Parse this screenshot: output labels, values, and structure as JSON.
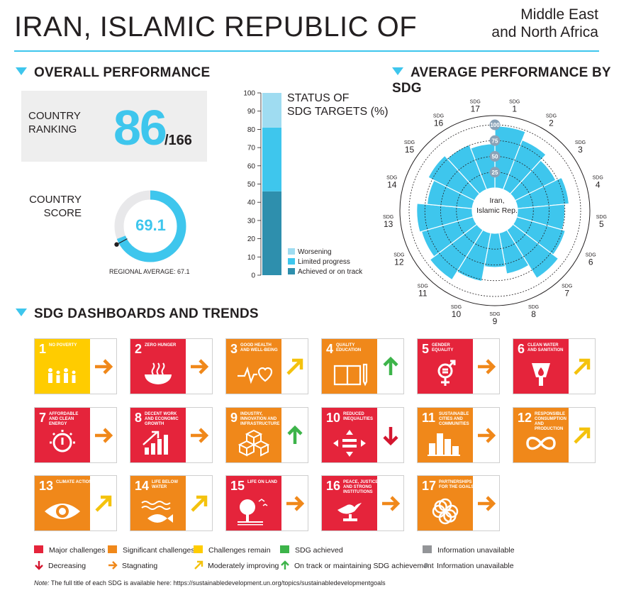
{
  "header": {
    "country": "IRAN, ISLAMIC REPUBLIC OF",
    "region_line1": "Middle East",
    "region_line2": "and North Africa"
  },
  "overall": {
    "section_title": "OVERALL PERFORMANCE",
    "ranking_label_1": "COUNTRY",
    "ranking_label_2": "RANKING",
    "rank": "86",
    "rank_of": "/166",
    "score_label_1": "COUNTRY",
    "score_label_2": "SCORE",
    "score": "69.1",
    "score_value": 69.1,
    "regional_average_label": "REGIONAL AVERAGE: 67.1",
    "regional_average_value": 67.1
  },
  "status": {
    "title_1": "STATUS OF",
    "title_2": "SDG TARGETS (%)",
    "ticks": [
      "100",
      "90",
      "80",
      "70",
      "60",
      "50",
      "40",
      "30",
      "20",
      "10",
      "0"
    ],
    "legend": [
      "Worsening",
      "Limited progress",
      "Achieved or on track"
    ]
  },
  "chart_data": {
    "type": "bar",
    "title": "STATUS OF SDG TARGETS (%)",
    "categories": [
      "SDG targets"
    ],
    "series": [
      {
        "name": "Achieved or on track",
        "values": [
          46
        ]
      },
      {
        "name": "Limited progress",
        "values": [
          35
        ]
      },
      {
        "name": "Worsening",
        "values": [
          19
        ]
      }
    ],
    "stacked": true,
    "ylim": [
      0,
      100
    ],
    "colors": {
      "Achieved or on track": "#2e8fad",
      "Limited progress": "#3ec6ed",
      "Worsening": "#9fdcf1"
    }
  },
  "radial": {
    "section_title": "AVERAGE PERFORMANCE BY SDG",
    "center_label_1": "Iran,",
    "center_label_2": "Islamic Rep.",
    "scale_labels": [
      "100",
      "75",
      "50",
      "25"
    ],
    "sdg_prefix": "SDG",
    "goals": [
      "1",
      "2",
      "3",
      "4",
      "5",
      "6",
      "7",
      "8",
      "9",
      "10",
      "11",
      "12",
      "13",
      "14",
      "15",
      "16",
      "17"
    ],
    "scores": [
      98,
      84,
      72,
      82,
      75,
      80,
      90,
      66,
      54,
      78,
      93,
      85,
      88,
      72,
      82,
      76,
      70
    ]
  },
  "dashboards": {
    "section_title": "SDG DASHBOARDS AND TRENDS",
    "tiles": [
      {
        "num": "1",
        "name": "No poverty",
        "color": "#ffcc00",
        "arrow": "stagnating",
        "icon": "family-icon"
      },
      {
        "num": "2",
        "name": "Zero hunger",
        "color": "#e5243b",
        "arrow": "stagnating",
        "icon": "bowl-icon"
      },
      {
        "num": "3",
        "name": "Good health and well-being",
        "color": "#f0881a",
        "arrow": "moderate",
        "icon": "heartbeat-icon"
      },
      {
        "num": "4",
        "name": "Quality education",
        "color": "#f0881a",
        "arrow": "ontrack",
        "icon": "book-icon"
      },
      {
        "num": "5",
        "name": "Gender equality",
        "color": "#e5243b",
        "arrow": "stagnating",
        "icon": "gender-icon"
      },
      {
        "num": "6",
        "name": "Clean water and sanitation",
        "color": "#e5243b",
        "arrow": "moderate",
        "icon": "water-icon"
      },
      {
        "num": "7",
        "name": "Affordable and clean energy",
        "color": "#e5243b",
        "arrow": "stagnating",
        "icon": "power-icon"
      },
      {
        "num": "8",
        "name": "Decent work and economic growth",
        "color": "#e5243b",
        "arrow": "stagnating",
        "icon": "growth-icon"
      },
      {
        "num": "9",
        "name": "Industry, innovation and infrastructure",
        "color": "#f0881a",
        "arrow": "ontrack",
        "icon": "cubes-icon"
      },
      {
        "num": "10",
        "name": "Reduced inequalities",
        "color": "#e5243b",
        "arrow": "decreasing",
        "icon": "equal-icon"
      },
      {
        "num": "11",
        "name": "Sustainable cities and communities",
        "color": "#f0881a",
        "arrow": "stagnating",
        "icon": "city-icon"
      },
      {
        "num": "12",
        "name": "Responsible consumption and production",
        "color": "#f0881a",
        "arrow": "moderate",
        "icon": "infinity-icon"
      },
      {
        "num": "13",
        "name": "Climate action",
        "color": "#f0881a",
        "arrow": "moderate",
        "icon": "eye-icon"
      },
      {
        "num": "14",
        "name": "Life below water",
        "color": "#f0881a",
        "arrow": "moderate",
        "icon": "fish-icon"
      },
      {
        "num": "15",
        "name": "Life on land",
        "color": "#e5243b",
        "arrow": "stagnating",
        "icon": "tree-icon"
      },
      {
        "num": "16",
        "name": "Peace, justice and strong institutions",
        "color": "#e5243b",
        "arrow": "stagnating",
        "icon": "dove-icon"
      },
      {
        "num": "17",
        "name": "Partnerships for the goals",
        "color": "#f0881a",
        "arrow": "stagnating",
        "icon": "flower-icon"
      }
    ]
  },
  "legend": {
    "major": "Major challenges",
    "significant": "Significant challenges",
    "remain": "Challenges remain",
    "achieved": "SDG achieved",
    "info": "Information unavailable",
    "decreasing": "Decreasing",
    "stagnating": "Stagnating",
    "moderate": "Moderately improving",
    "ontrack": "On track or maintaining SDG achievement",
    "info2": "Information unavailable"
  },
  "note": {
    "prefix": "Note:",
    "text": " The full title of each SDG is available here: https://sustainabledevelopment.un.org/topics/sustainabledevelopmentgoals"
  },
  "colors": {
    "accent": "#3ec6ed",
    "red": "#e5243b",
    "orange": "#f0881a",
    "yellow": "#ffcc00",
    "green": "#3db44a",
    "gray": "#939598",
    "arrow_red": "#d4162f",
    "arrow_orange": "#f0881a",
    "arrow_yellow": "#f4c20d",
    "arrow_green": "#3db44a"
  }
}
